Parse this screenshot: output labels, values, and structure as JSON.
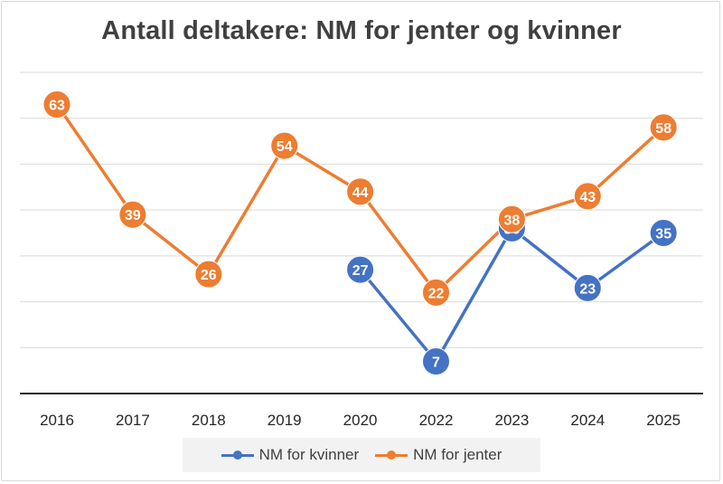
{
  "chart_data": {
    "type": "line",
    "title": "Antall deltakere: NM for jenter og kvinner",
    "categories": [
      "2016",
      "2017",
      "2018",
      "2019",
      "2020",
      "2022",
      "2023",
      "2024",
      "2025"
    ],
    "ylim": [
      0,
      70
    ],
    "grid": true,
    "legend_position": "bottom",
    "series": [
      {
        "name": "NM for kvinner",
        "color": "#4472C4",
        "values": [
          null,
          null,
          null,
          null,
          27,
          7,
          36,
          23,
          35
        ]
      },
      {
        "name": "NM for jenter",
        "color": "#ED7D31",
        "values": [
          63,
          39,
          26,
          54,
          44,
          22,
          38,
          43,
          58
        ]
      }
    ]
  }
}
